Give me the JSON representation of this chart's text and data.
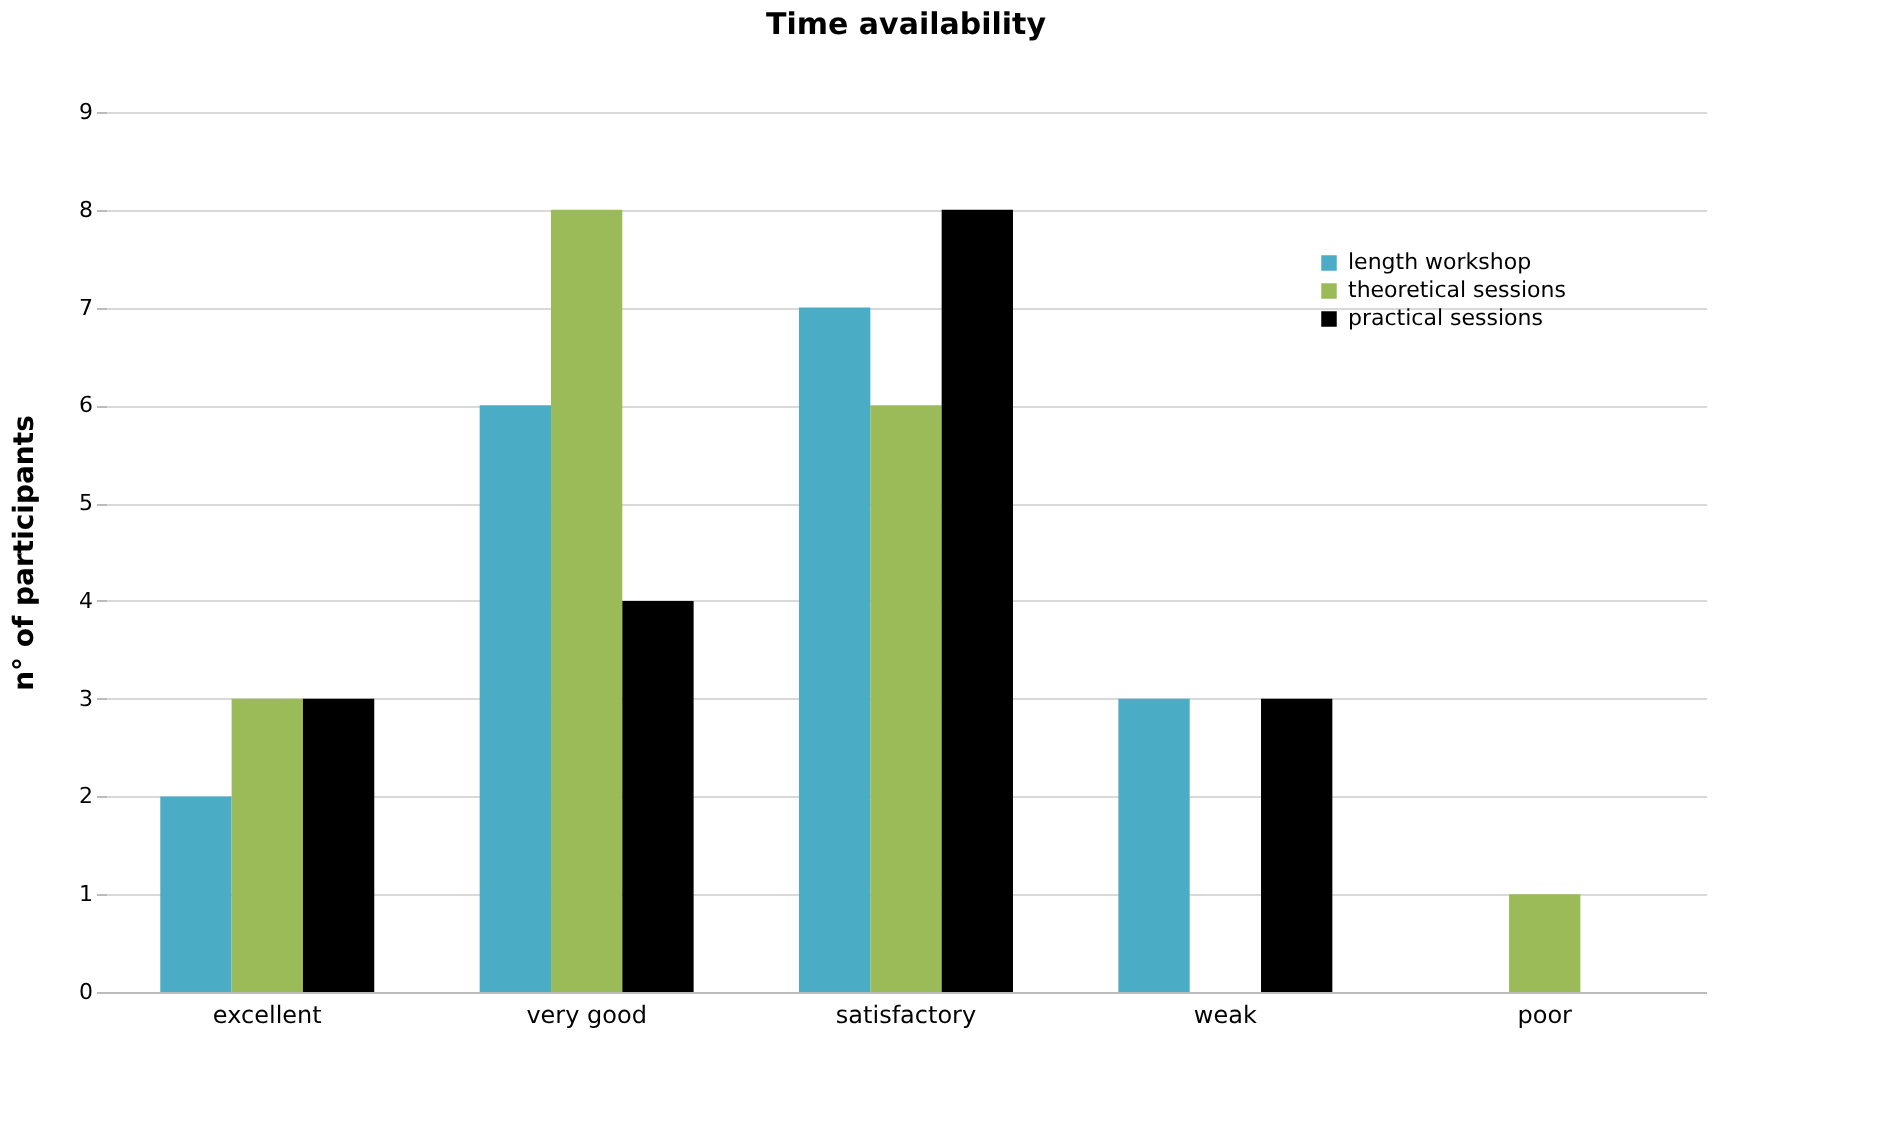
{
  "chart_data": {
    "type": "bar",
    "title": "Time availability",
    "ylabel": "n° of participants",
    "categories": [
      "excellent",
      "very good",
      "satisfactory",
      "weak",
      "poor"
    ],
    "series": [
      {
        "name": "length workshop",
        "color": "#4bacc6",
        "values": [
          2,
          6,
          7,
          3,
          0
        ]
      },
      {
        "name": "theoretical sessions",
        "color": "#9bbb59",
        "values": [
          3,
          8,
          6,
          0,
          1
        ]
      },
      {
        "name": "practical sessions",
        "color": "#000000",
        "values": [
          3,
          4,
          8,
          3,
          0
        ]
      }
    ],
    "ylim": [
      0,
      9
    ],
    "yticks": [
      0,
      1,
      2,
      3,
      4,
      5,
      6,
      7,
      8,
      9
    ],
    "grid": "y",
    "legend": "top right"
  }
}
